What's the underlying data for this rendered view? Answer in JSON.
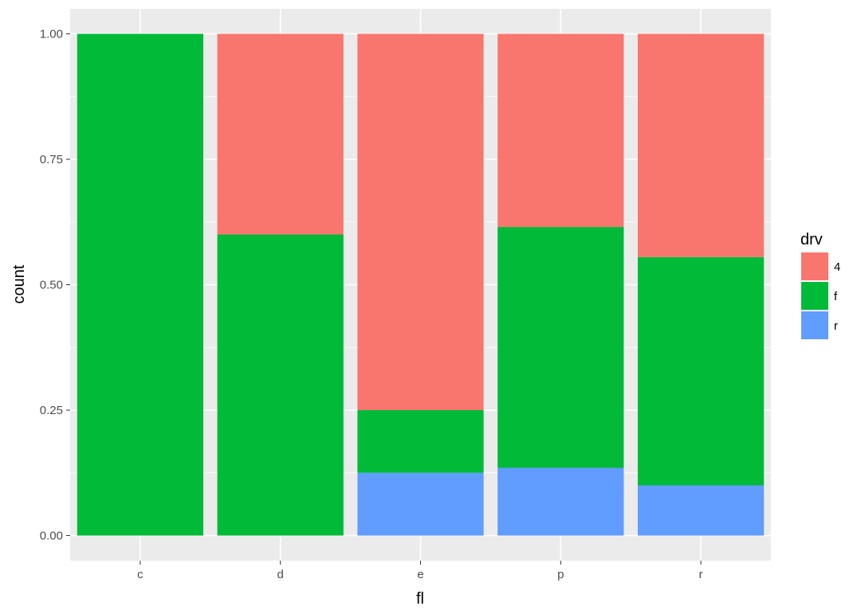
{
  "chart_data": {
    "type": "bar",
    "stacked": true,
    "position": "fill",
    "categories": [
      "c",
      "d",
      "e",
      "p",
      "r"
    ],
    "series": [
      {
        "name": "4",
        "color": "#F8766D",
        "values": [
          0.0,
          0.4,
          0.75,
          0.385,
          0.445
        ]
      },
      {
        "name": "f",
        "color": "#00BA38",
        "values": [
          1.0,
          0.6,
          0.125,
          0.48,
          0.455
        ]
      },
      {
        "name": "r",
        "color": "#619CFF",
        "values": [
          0.0,
          0.0,
          0.125,
          0.135,
          0.1
        ]
      }
    ],
    "stack_order": [
      "r",
      "f",
      "4"
    ],
    "yticks": [
      "0.00",
      "0.25",
      "0.50",
      "0.75",
      "1.00"
    ],
    "ytick_values": [
      0,
      0.25,
      0.5,
      0.75,
      1.0
    ],
    "ylim": [
      -0.05,
      1.05
    ],
    "xlabel": "fl",
    "ylabel": "count",
    "legend": {
      "title": "drv",
      "placement": "right"
    },
    "grid": true,
    "panel_color": "#EBEBEB",
    "grid_color": "#FFFFFF"
  }
}
